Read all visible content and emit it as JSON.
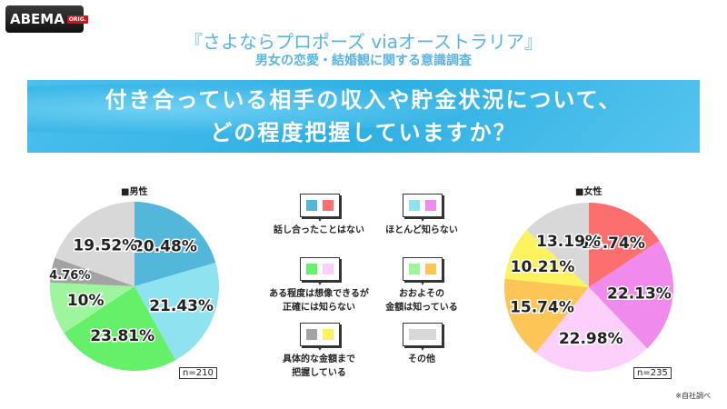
{
  "logo": {
    "brand": "ABEMA",
    "badge": "ORIG."
  },
  "header": {
    "title": "『さよならプロポーズ viaオーストラリア』",
    "subtitle": "男女の恋愛・結婚観に関する意識調査"
  },
  "question": {
    "line1": "付き合っている相手の収入や貯金状況について、",
    "line2": "どの程度把握していますか？"
  },
  "legend": [
    {
      "label": "話し合ったことはない",
      "colors": [
        "#52b7d9",
        "#fd6e6e"
      ]
    },
    {
      "label": "ほとんど知らない",
      "colors": [
        "#8fe3f1",
        "#f08aec"
      ]
    },
    {
      "label": "ある程度は想像できるが\n正確には知らない",
      "colors": [
        "#64f068",
        "#fdd0fb"
      ]
    },
    {
      "label": "おおよその\n金額は知っている",
      "colors": [
        "#9ef59d",
        "#fdc555"
      ]
    },
    {
      "label": "具体的な金額まで\n把握している",
      "colors": [
        "#a3a3a3",
        "#fdf35e"
      ]
    },
    {
      "label": "その他",
      "colors": [
        "#d8d8d8"
      ]
    }
  ],
  "footnote": "※自社調べ",
  "chart_data": [
    {
      "type": "pie",
      "title": "■男性",
      "n_label": "n=210",
      "start": "top",
      "direction": "clockwise",
      "labels": [
        "20.48%",
        "21.43%",
        "23.81%",
        "10%",
        "4.76%",
        "19.52%"
      ],
      "values": [
        20.48,
        21.43,
        23.81,
        10,
        4.76,
        19.52
      ],
      "colors": [
        "#52b7d9",
        "#8fe3f1",
        "#64f068",
        "#9ef59d",
        "#a3a3a3",
        "#d8d8d8"
      ]
    },
    {
      "type": "pie",
      "title": "■女性",
      "n_label": "n=235",
      "start": "top",
      "direction": "clockwise",
      "labels": [
        "15.74%",
        "22.13%",
        "22.98%",
        "15.74%",
        "10.21%",
        "13.19%"
      ],
      "values": [
        15.74,
        22.13,
        22.98,
        15.74,
        10.21,
        13.19
      ],
      "colors": [
        "#fd6e6e",
        "#f08aec",
        "#fdd0fb",
        "#fdc555",
        "#fdf35e",
        "#d8d8d8"
      ]
    }
  ]
}
